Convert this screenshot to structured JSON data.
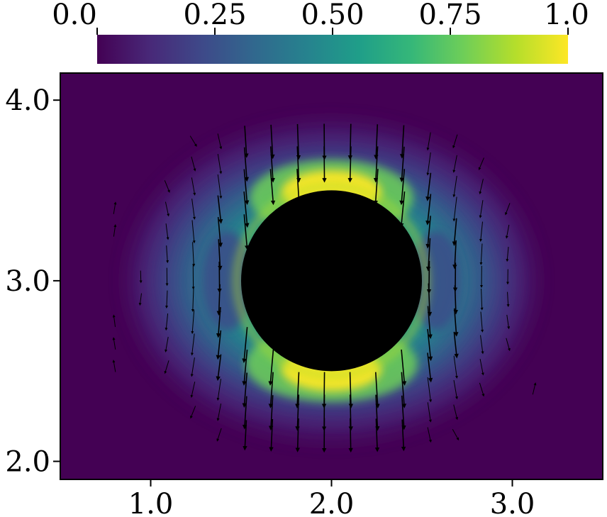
{
  "chart_data": {
    "type": "heatmap",
    "title": "",
    "xlabel": "",
    "ylabel": "",
    "xlim": [
      0.5,
      3.5
    ],
    "ylim": [
      1.9,
      4.15
    ],
    "x_ticks": [
      {
        "value": 1.0,
        "label": "1.0"
      },
      {
        "value": 2.0,
        "label": "2.0"
      },
      {
        "value": 3.0,
        "label": "3.0"
      }
    ],
    "y_ticks": [
      {
        "value": 2.0,
        "label": "2.0"
      },
      {
        "value": 3.0,
        "label": "3.0"
      },
      {
        "value": 4.0,
        "label": "4.0"
      }
    ],
    "colorbar": {
      "colormap": "viridis",
      "range": [
        0.0,
        1.0
      ],
      "placement": "top",
      "ticks": [
        {
          "value": 0.0,
          "label": "0.0"
        },
        {
          "value": 0.25,
          "label": "0.25"
        },
        {
          "value": 0.5,
          "label": "0.50"
        },
        {
          "value": 0.75,
          "label": "0.75"
        },
        {
          "value": 1.0,
          "label": "1.0"
        }
      ],
      "colors": [
        "#440154",
        "#482878",
        "#3e4989",
        "#31688e",
        "#26828e",
        "#1f9e89",
        "#35b779",
        "#6ece58",
        "#b5de2b",
        "#fde725"
      ]
    },
    "obstacle": {
      "shape": "circle",
      "center": [
        2.0,
        3.0
      ],
      "radius": 0.5,
      "color": "#000000"
    },
    "field": {
      "description_of_peak": "speed magnitude, max near top and bottom of circle",
      "max": 1.0
    },
    "quiver": {
      "color": "#000000",
      "style": "recirculating vortex pair around circle, flow downward below, inward above"
    }
  }
}
